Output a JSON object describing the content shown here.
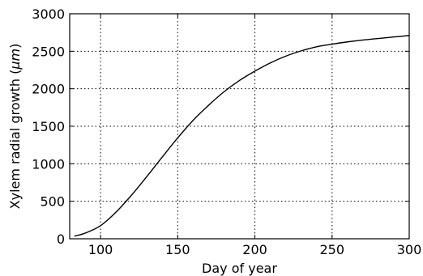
{
  "chart_data": {
    "type": "line",
    "title": "",
    "xlabel": "Day of year",
    "ylabel_prefix": "Xylem radial growth (",
    "ylabel_unit": "μm",
    "ylabel_suffix": ")",
    "xlim": [
      80,
      300
    ],
    "ylim": [
      0,
      3000
    ],
    "x_ticks": [
      100,
      150,
      200,
      250,
      300
    ],
    "y_ticks": [
      0,
      500,
      1000,
      1500,
      2000,
      2500,
      3000
    ],
    "grid": true,
    "series": [
      {
        "x": [
          83,
          90,
          100,
          110,
          120,
          130,
          140,
          150,
          160,
          170,
          180,
          190,
          200,
          210,
          220,
          230,
          240,
          250,
          260,
          270,
          280,
          290,
          300
        ],
        "y": [
          35,
          75,
          175,
          355,
          580,
          830,
          1090,
          1345,
          1580,
          1780,
          1960,
          2110,
          2235,
          2345,
          2435,
          2505,
          2560,
          2595,
          2625,
          2650,
          2670,
          2690,
          2710
        ]
      }
    ]
  }
}
